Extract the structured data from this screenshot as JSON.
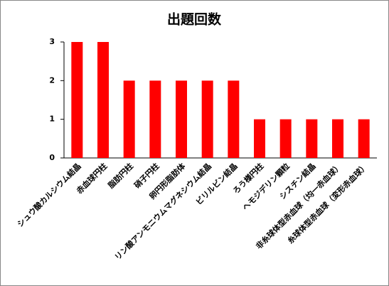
{
  "chart_data": {
    "type": "bar",
    "title": "出題回数",
    "categories": [
      "シュウ酸カルシウム結晶",
      "赤血球円柱",
      "脂肪円柱",
      "硝子円柱",
      "卵円形脂肪体",
      "リン酸アンモニウムマグネシウム結晶",
      "ビリルビン結晶",
      "ろう様円柱",
      "ヘモジデリン顆粒",
      "シスチン結晶",
      "非糸球体型赤血球（均一赤血球）",
      "糸球体型赤血球（変形赤血球）"
    ],
    "values": [
      3,
      3,
      2,
      2,
      2,
      2,
      2,
      1,
      1,
      1,
      1,
      1
    ],
    "color": "#ff0000",
    "ylim": [
      0,
      3
    ],
    "yticks": [
      0,
      1,
      2,
      3
    ],
    "grid": false
  }
}
